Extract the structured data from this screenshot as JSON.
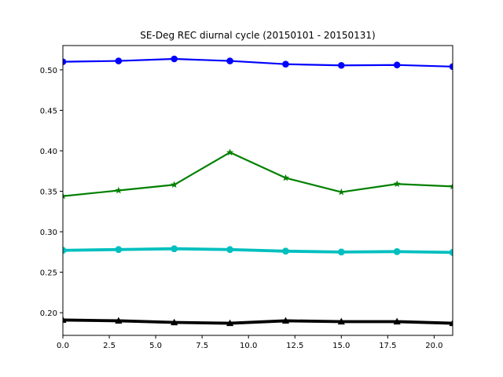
{
  "chart_data": {
    "type": "line",
    "title": "SE-Deg REC diurnal cycle (20150101 - 20150131)",
    "xlabel": "",
    "ylabel": "",
    "x": [
      0,
      3,
      6,
      9,
      12,
      15,
      18,
      21
    ],
    "xlim": [
      0,
      21
    ],
    "ylim": [
      0.172,
      0.53
    ],
    "xticks": [
      0.0,
      2.5,
      5.0,
      7.5,
      10.0,
      12.5,
      15.0,
      17.5,
      20.0
    ],
    "xtick_labels": [
      "0.0",
      "2.5",
      "5.0",
      "7.5",
      "10.0",
      "12.5",
      "15.0",
      "17.5",
      "20.0"
    ],
    "yticks": [
      0.2,
      0.25,
      0.3,
      0.35,
      0.4,
      0.45,
      0.5
    ],
    "ytick_labels": [
      "0.20",
      "0.25",
      "0.30",
      "0.35",
      "0.40",
      "0.45",
      "0.50"
    ],
    "grid": false,
    "legend": "none",
    "series": [
      {
        "color": "#0000ff",
        "marker": "circle",
        "line_width": "medium",
        "values": [
          0.51,
          0.511,
          0.5135,
          0.511,
          0.507,
          0.5055,
          0.506,
          0.504
        ]
      },
      {
        "color": "#008000",
        "marker": "star",
        "line_width": "medium",
        "values": [
          0.344,
          0.351,
          0.358,
          0.398,
          0.3665,
          0.349,
          0.359,
          0.356
        ]
      },
      {
        "color": "#00bfbf",
        "marker": "octagon",
        "line_width": "thick",
        "values": [
          0.277,
          0.278,
          0.279,
          0.278,
          0.276,
          0.275,
          0.2755,
          0.2745
        ]
      },
      {
        "color": "#000000",
        "marker": "triangle",
        "line_width": "thick",
        "values": [
          0.191,
          0.19,
          0.188,
          0.187,
          0.19,
          0.189,
          0.189,
          0.187
        ]
      }
    ]
  }
}
